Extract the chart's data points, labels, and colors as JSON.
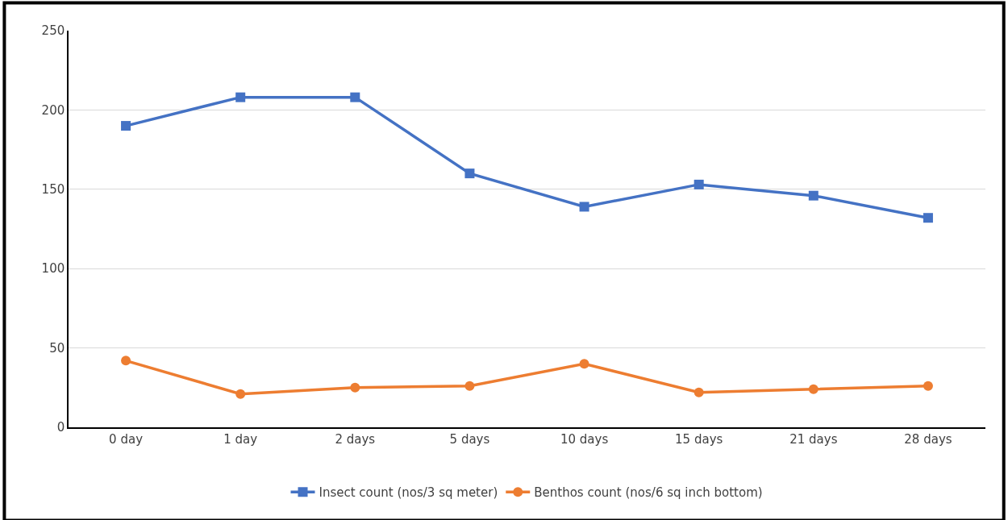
{
  "chart_data": {
    "type": "line",
    "categories": [
      "0 day",
      "1 day",
      "2 days",
      "5 days",
      "10 days",
      "15 days",
      "21 days",
      "28 days"
    ],
    "series": [
      {
        "name": "Insect count (nos/3 sq meter)",
        "color": "#4472c4",
        "marker": "square",
        "values": [
          190,
          208,
          208,
          160,
          139,
          153,
          146,
          132
        ]
      },
      {
        "name": "Benthos count (nos/6 sq inch bottom)",
        "color": "#ed7d31",
        "marker": "circle",
        "values": [
          42,
          21,
          25,
          26,
          40,
          22,
          24,
          26
        ]
      }
    ],
    "ylim": [
      0,
      250
    ],
    "yticks": [
      0,
      50,
      100,
      150,
      200,
      250
    ],
    "grid": "y",
    "legend": "bottom",
    "line_style": "solid"
  }
}
